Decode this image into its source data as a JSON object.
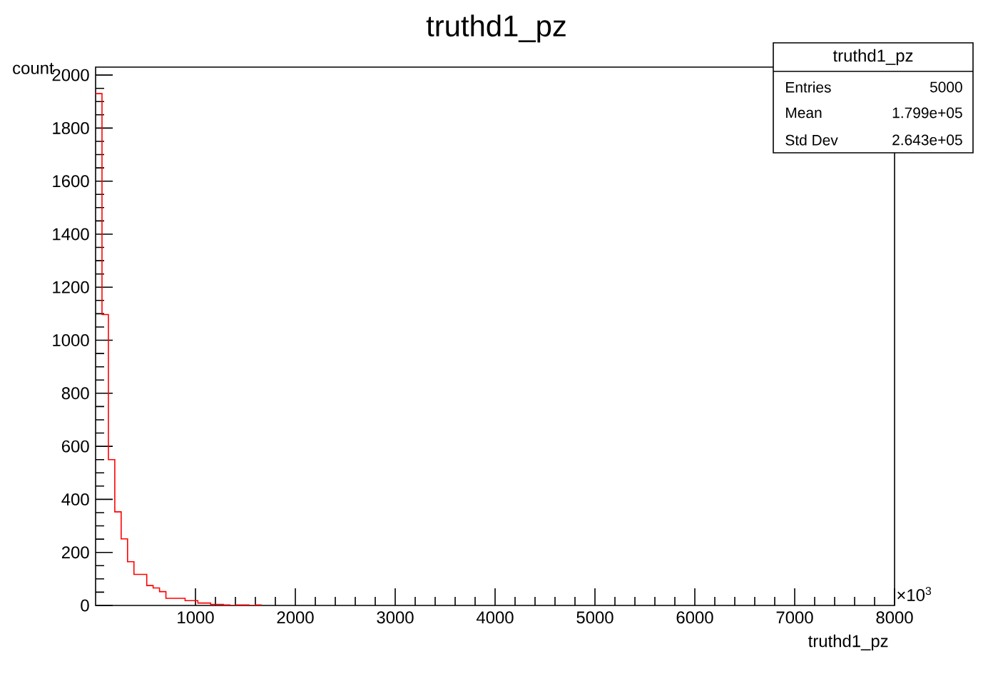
{
  "chart_data": {
    "type": "histogram",
    "title": "truthd1_pz",
    "xlabel": "truthd1_pz",
    "ylabel": "count",
    "bins": [
      0,
      64,
      128,
      192,
      256,
      320,
      384,
      448,
      512,
      576,
      640,
      704,
      768,
      832,
      896,
      960,
      1024,
      1088,
      1152,
      1216,
      1280,
      1344,
      1408,
      1472,
      1536,
      1600,
      1664
    ],
    "values": [
      1930,
      1097,
      550,
      353,
      251,
      165,
      117,
      117,
      75,
      66,
      52,
      27,
      27,
      27,
      18,
      18,
      9,
      9,
      4,
      4,
      2,
      0,
      2,
      2,
      0,
      2
    ],
    "color": "#ff0000",
    "xlim": [
      0,
      8000
    ],
    "xticks": [
      1000,
      2000,
      3000,
      4000,
      5000,
      6000,
      7000,
      8000
    ],
    "ylim": [
      0,
      2030
    ],
    "yticks": [
      0,
      200,
      400,
      600,
      800,
      1000,
      1200,
      1400,
      1600,
      1800,
      2000
    ],
    "annotations": [
      "truthd1_pz",
      "Entries",
      "5000",
      "Mean",
      "1.799e+05",
      "Std Dev",
      "2.643e+05",
      "×10$^{3}$"
    ]
  }
}
